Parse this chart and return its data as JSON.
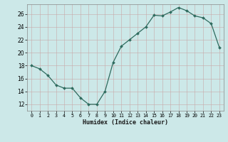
{
  "x": [
    0,
    1,
    2,
    3,
    4,
    5,
    6,
    7,
    8,
    9,
    10,
    11,
    12,
    13,
    14,
    15,
    16,
    17,
    18,
    19,
    20,
    21,
    22,
    23
  ],
  "y": [
    18,
    17.5,
    16.5,
    15,
    14.5,
    14.5,
    13,
    12,
    12,
    14,
    18.5,
    21,
    22,
    23,
    24,
    25.8,
    25.7,
    26.3,
    27,
    26.5,
    25.7,
    25.4,
    24.5,
    20.8
  ],
  "line_color": "#2e6b5e",
  "marker_color": "#2e6b5e",
  "bg_color": "#cce8e8",
  "grid_color": "#b8d8d8",
  "xlabel": "Humidex (Indice chaleur)",
  "ylim": [
    11,
    27.5
  ],
  "xlim": [
    -0.5,
    23.5
  ],
  "yticks": [
    12,
    14,
    16,
    18,
    20,
    22,
    24,
    26
  ],
  "xticks": [
    0,
    1,
    2,
    3,
    4,
    5,
    6,
    7,
    8,
    9,
    10,
    11,
    12,
    13,
    14,
    15,
    16,
    17,
    18,
    19,
    20,
    21,
    22,
    23
  ],
  "xtick_labels": [
    "0",
    "1",
    "2",
    "3",
    "4",
    "5",
    "6",
    "7",
    "8",
    "9",
    "10",
    "11",
    "12",
    "13",
    "14",
    "15",
    "16",
    "17",
    "18",
    "19",
    "20",
    "21",
    "22",
    "23"
  ]
}
